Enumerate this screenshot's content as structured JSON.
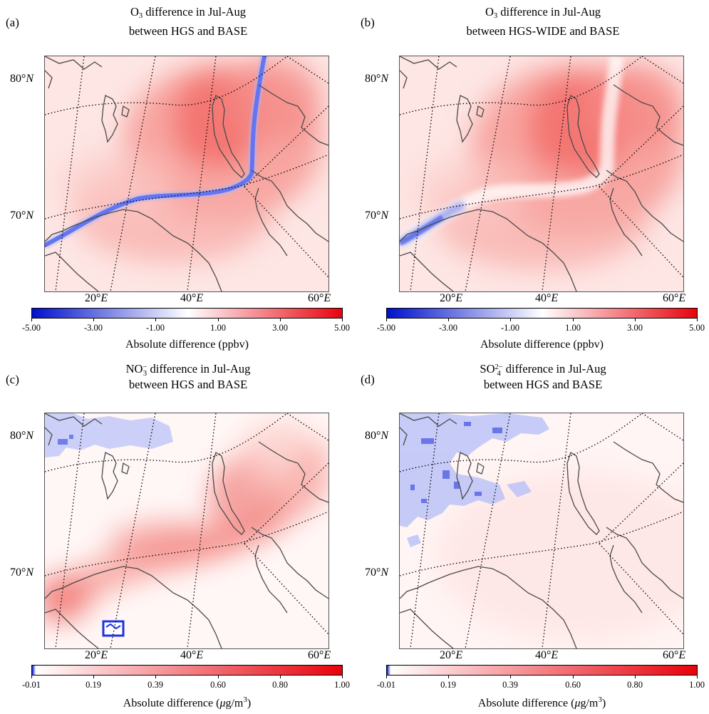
{
  "figure": {
    "colors": {
      "diverging_low": "#0011cc",
      "diverging_mid": "#ffffff",
      "diverging_high": "#e8000a",
      "sequential_low": "#ffffff",
      "sequential_high": "#e8000a",
      "coast": "#4a4a4a",
      "grid": "#000000"
    },
    "lat_labels": [
      "80°",
      "70°"
    ],
    "lat_unit": "N",
    "lon_labels": [
      "20°",
      "40°",
      "60°"
    ],
    "lon_unit": "E",
    "panels": [
      {
        "label": "(a)",
        "title_prefix": "O",
        "title_sub": "3",
        "title_sup": "",
        "title_line1_rest": " difference in Jul-Aug",
        "title_line2": "between HGS and BASE",
        "colorbar_ticks": [
          "-5.00",
          "-3.00",
          "-1.00",
          "1.00",
          "3.00",
          "5.00"
        ],
        "colorbar_title": "Absolute difference (ppbv)",
        "colormap": "diverging"
      },
      {
        "label": "(b)",
        "title_prefix": "O",
        "title_sub": "3",
        "title_sup": "",
        "title_line1_rest": " difference in Jul-Aug",
        "title_line2": "between HGS-WIDE and BASE",
        "colorbar_ticks": [
          "-5.00",
          "-3.00",
          "-1.00",
          "1.00",
          "3.00",
          "5.00"
        ],
        "colorbar_title": "Absolute difference (ppbv)",
        "colormap": "diverging"
      },
      {
        "label": "(c)",
        "title_prefix": "NO",
        "title_sub": "3",
        "title_sup": "−",
        "title_line1_rest": " difference in Jul-Aug",
        "title_line2": "between HGS and BASE",
        "colorbar_ticks": [
          "-0.01",
          "0.19",
          "0.39",
          "0.60",
          "0.80",
          "1.00"
        ],
        "colorbar_title_prefix": "Absolute difference (",
        "colorbar_title_mu": "μ",
        "colorbar_title_unit": "g/m",
        "colorbar_title_sup": "3",
        "colorbar_title_suffix": ")",
        "colormap": "sequential"
      },
      {
        "label": "(d)",
        "title_prefix": "SO",
        "title_sub": "4",
        "title_sup": "2−",
        "title_line1_rest": " difference in Jul-Aug",
        "title_line2": "between HGS and BASE",
        "colorbar_ticks": [
          "-0.01",
          "0.19",
          "0.39",
          "0.60",
          "0.80",
          "1.00"
        ],
        "colorbar_title_prefix": "Absolute difference (",
        "colorbar_title_mu": "μ",
        "colorbar_title_unit": "g/m",
        "colorbar_title_sup": "3",
        "colorbar_title_suffix": ")",
        "colormap": "sequential"
      }
    ]
  }
}
